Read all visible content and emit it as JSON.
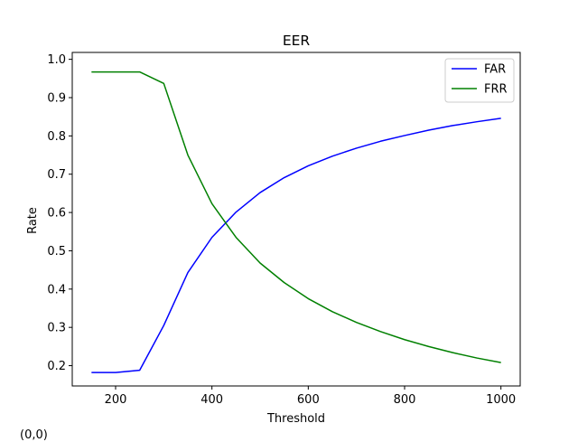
{
  "corner_readout": "(0,0)",
  "chart_data": {
    "type": "line",
    "title": "EER",
    "xlabel": "Threshold",
    "ylabel": "Rate",
    "xlim": [
      110,
      1040
    ],
    "ylim": [
      0.147,
      1.018
    ],
    "xticks": [
      200,
      400,
      600,
      800,
      1000
    ],
    "yticks": [
      0.2,
      0.3,
      0.4,
      0.5,
      0.6,
      0.7,
      0.8,
      0.9,
      1.0
    ],
    "grid": false,
    "legend_position": "top-right",
    "x": [
      150,
      200,
      250,
      300,
      350,
      400,
      450,
      500,
      550,
      600,
      650,
      700,
      750,
      800,
      850,
      900,
      950,
      1000
    ],
    "series": [
      {
        "name": "FAR",
        "color": "#0000ff",
        "values": [
          0.182,
          0.182,
          0.188,
          0.305,
          0.443,
          0.535,
          0.601,
          0.652,
          0.691,
          0.722,
          0.747,
          0.768,
          0.786,
          0.801,
          0.815,
          0.827,
          0.837,
          0.846
        ]
      },
      {
        "name": "FRR",
        "color": "#008000",
        "values": [
          0.967,
          0.967,
          0.967,
          0.937,
          0.75,
          0.623,
          0.535,
          0.468,
          0.417,
          0.375,
          0.341,
          0.313,
          0.289,
          0.268,
          0.25,
          0.234,
          0.22,
          0.208
        ]
      }
    ]
  }
}
